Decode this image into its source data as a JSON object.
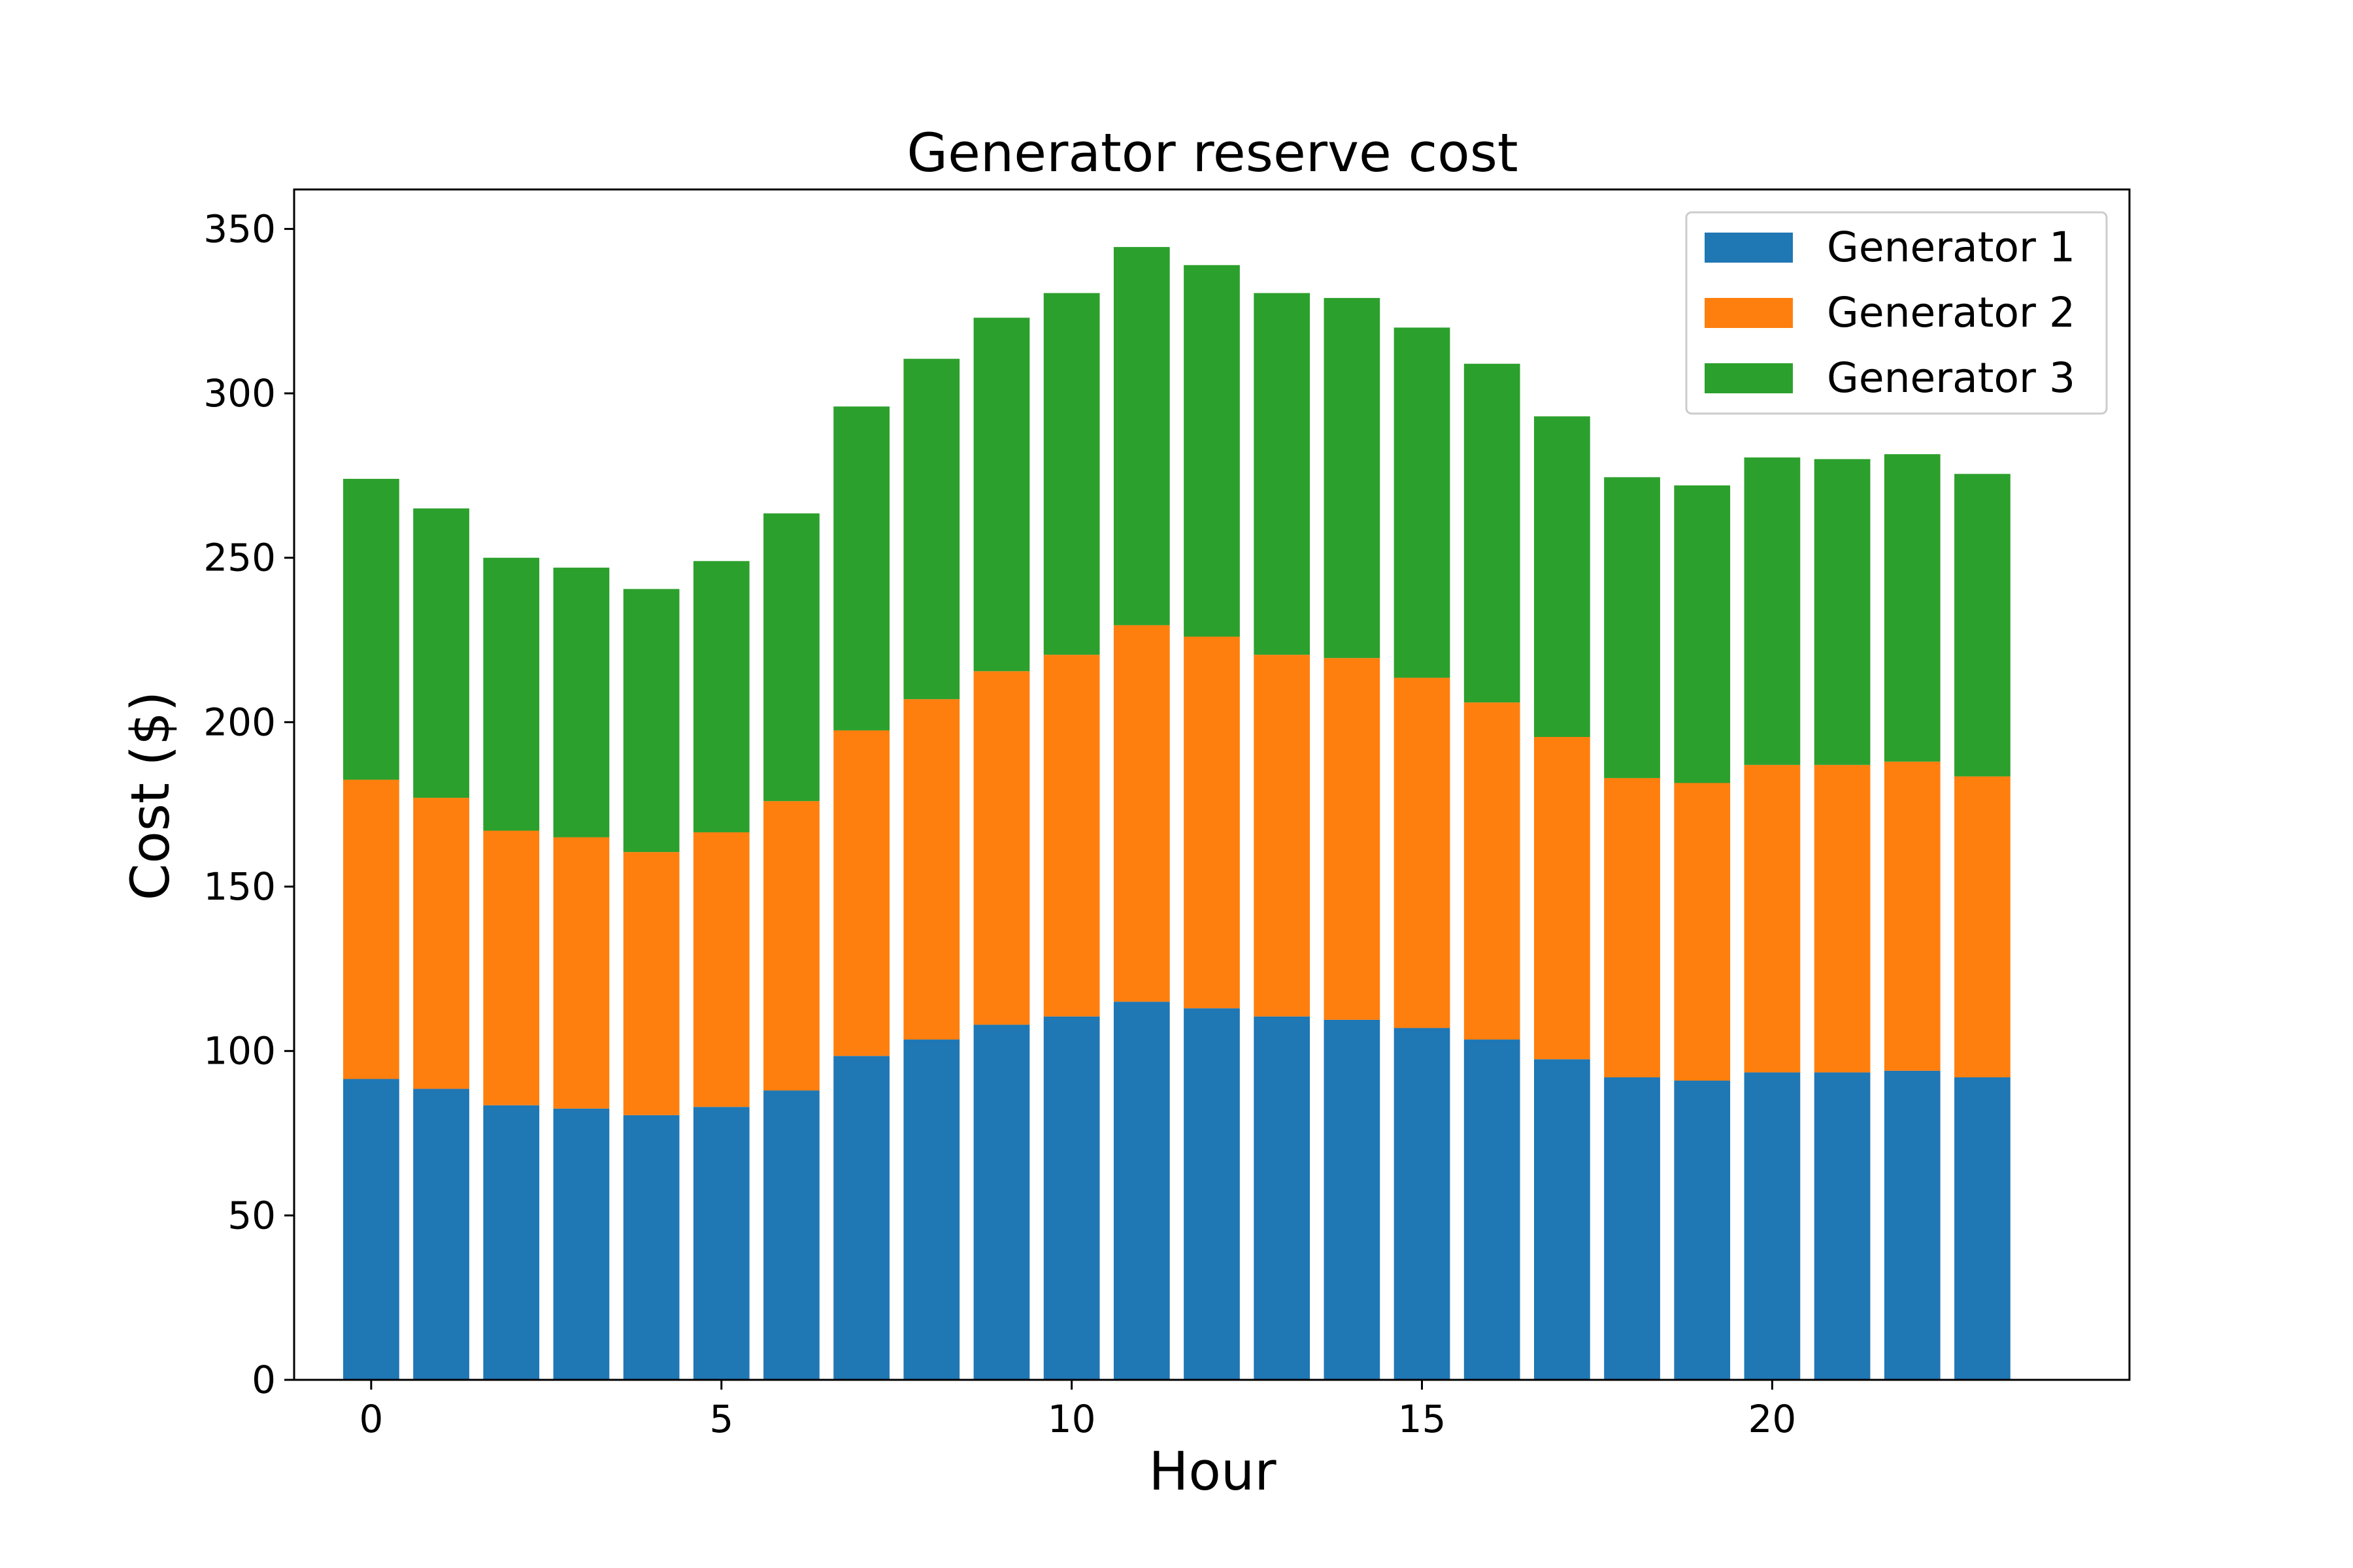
{
  "chart_data": {
    "type": "bar",
    "stacked": true,
    "title": "Generator reserve cost",
    "xlabel": "Hour",
    "ylabel": "Cost ($)",
    "xlim": [
      -1.1,
      25.1
    ],
    "ylim": [
      0,
      362
    ],
    "x_ticks": [
      0,
      5,
      10,
      15,
      20
    ],
    "y_ticks": [
      0,
      50,
      100,
      150,
      200,
      250,
      300,
      350
    ],
    "grid": false,
    "legend_position": "top-right",
    "categories": [
      0,
      1,
      2,
      3,
      4,
      5,
      6,
      7,
      8,
      9,
      10,
      11,
      12,
      13,
      14,
      15,
      16,
      17,
      18,
      19,
      20,
      21,
      22,
      23
    ],
    "series": [
      {
        "name": "Generator 1",
        "color": "#1f77b4",
        "values": [
          91.5,
          88.5,
          83.5,
          82.5,
          80.5,
          83,
          88,
          98.5,
          103.5,
          108,
          110.5,
          115,
          113,
          110.5,
          109.5,
          107,
          103.5,
          97.5,
          92,
          91,
          93.5,
          93.5,
          94,
          92
        ]
      },
      {
        "name": "Generator 2",
        "color": "#ff7f0e",
        "values": [
          91,
          88.5,
          83.5,
          82.5,
          80,
          83.5,
          88,
          99,
          103.5,
          107.5,
          110,
          114.5,
          113,
          110,
          110,
          106.5,
          102.5,
          98,
          91,
          90.5,
          93.5,
          93.5,
          94,
          91.5
        ]
      },
      {
        "name": "Generator 3",
        "color": "#2ca02c",
        "values": [
          91.5,
          88,
          83,
          82,
          80,
          82.5,
          87.5,
          98.5,
          103.5,
          107.5,
          110,
          115,
          113,
          110,
          109.5,
          106.5,
          103,
          97.5,
          91.5,
          90.5,
          93.5,
          93,
          93.5,
          92
        ]
      }
    ]
  }
}
